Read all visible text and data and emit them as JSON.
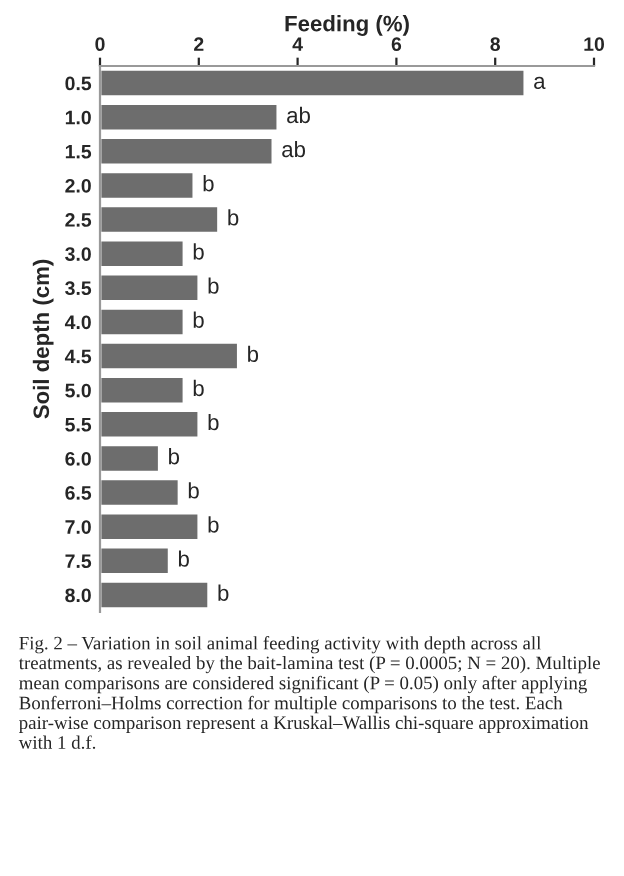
{
  "chart_data": {
    "type": "bar",
    "orientation": "horizontal",
    "xlabel": "Feeding (%)",
    "ylabel": "Soil depth (cm)",
    "categories": [
      "0.5",
      "1.0",
      "1.5",
      "2.0",
      "2.5",
      "3.0",
      "3.5",
      "4.0",
      "4.5",
      "5.0",
      "5.5",
      "6.0",
      "6.5",
      "7.0",
      "7.5",
      "8.0"
    ],
    "values": [
      8.6,
      3.6,
      3.5,
      1.9,
      2.4,
      1.7,
      2.0,
      1.7,
      2.8,
      1.7,
      2.0,
      1.2,
      1.6,
      2.0,
      1.4,
      2.2
    ],
    "value_labels": [
      "a",
      "ab",
      "ab",
      "b",
      "b",
      "b",
      "b",
      "b",
      "b",
      "b",
      "b",
      "b",
      "b",
      "b",
      "b",
      "b"
    ],
    "color": "#6d6d6d",
    "xlim": [
      0,
      10
    ],
    "xticks": [
      0,
      2,
      4,
      6,
      8,
      10
    ],
    "grid": false,
    "legend": false,
    "annotations": [
      "Fig. 2 – Variation in soil animal feeding activity with depth across all treatments, as revealed by the bait-lamina test (P = 0.0005; N = 20). Multiple mean comparisons are considered significant (P = 0.05) only after applying Bonferroni–Holms correction for multiple comparisons to the test. Each pair-wise comparison represent a Kruskal–Wallis chi-square approximation with 1 d.f."
    ]
  }
}
